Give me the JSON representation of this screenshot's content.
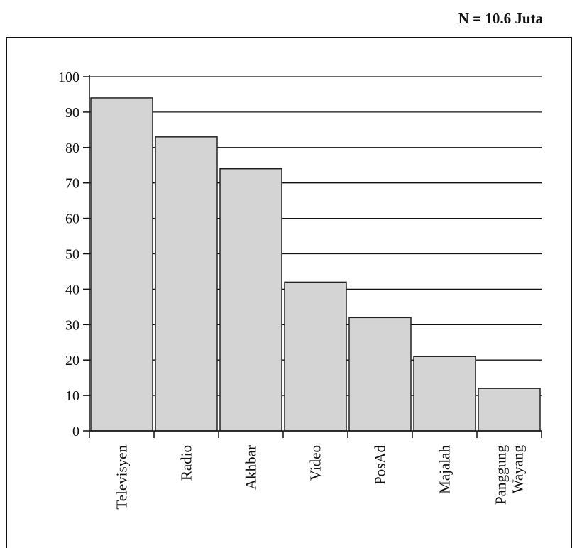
{
  "annotation": "N = 10.6 Juta",
  "colors": {
    "bar_fill": "#d4d4d4",
    "bar_stroke": "#222222",
    "grid": "#111111"
  },
  "chart_data": {
    "type": "bar",
    "categories": [
      [
        "Televisyen"
      ],
      [
        "Radio"
      ],
      [
        "Akhbar"
      ],
      [
        "Video"
      ],
      [
        "PosAd"
      ],
      [
        "Majalah"
      ],
      [
        "Panggung",
        "Wayang"
      ]
    ],
    "values": [
      94,
      83,
      74,
      42,
      32,
      21,
      12
    ],
    "ylim": [
      0,
      100
    ],
    "yticks": [
      0,
      10,
      20,
      30,
      40,
      50,
      60,
      70,
      80,
      90,
      100
    ],
    "grid": true,
    "title": "",
    "xlabel": "",
    "ylabel": ""
  }
}
